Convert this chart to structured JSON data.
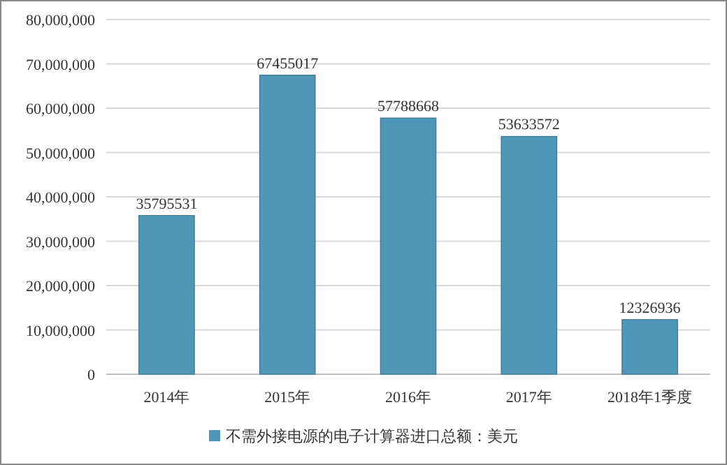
{
  "chart_data": {
    "type": "bar",
    "categories": [
      "2014年",
      "2015年",
      "2016年",
      "2017年",
      "2018年1季度"
    ],
    "series": [
      {
        "name": "不需外接电源的电子计算器进口总额：美元",
        "color": "#4f97b8",
        "values": [
          35795531,
          67455017,
          57788668,
          53633572,
          12326936
        ]
      }
    ],
    "ylim": [
      0,
      80000000
    ],
    "yticks": [
      0,
      {
        "value": 10000000,
        "label": "10,000,000"
      },
      {
        "value": 20000000,
        "label": "20,000,000"
      },
      {
        "value": 30000000,
        "label": "30,000,000"
      },
      {
        "value": 40000000,
        "label": "40,000,000"
      },
      {
        "value": 50000000,
        "label": "50,000,000"
      },
      {
        "value": 60000000,
        "label": "60,000,000"
      },
      {
        "value": 70000000,
        "label": "70,000,000"
      },
      {
        "value": 80000000,
        "label": "80,000,000"
      }
    ],
    "grid": "y",
    "data_labels": true,
    "legend": "bottom"
  }
}
